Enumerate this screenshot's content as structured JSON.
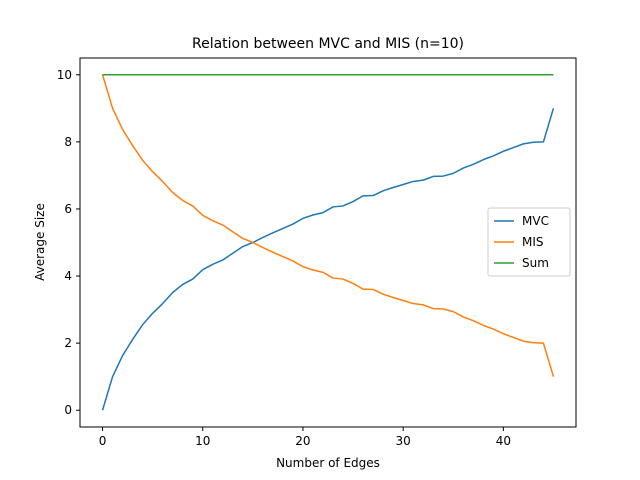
{
  "chart_data": {
    "type": "line",
    "title": "Relation between MVC and MIS (n=10)",
    "xlabel": "Number of Edges",
    "ylabel": "Average Size",
    "xlim": [
      -2.25,
      47.25
    ],
    "ylim": [
      -0.5,
      10.5
    ],
    "xticks": [
      0,
      10,
      20,
      30,
      40
    ],
    "yticks": [
      0,
      2,
      4,
      6,
      8,
      10
    ],
    "grid": false,
    "legend_position": "center-right",
    "x": [
      0,
      1,
      2,
      3,
      4,
      5,
      6,
      7,
      8,
      9,
      10,
      11,
      12,
      13,
      14,
      15,
      16,
      17,
      18,
      19,
      20,
      21,
      22,
      23,
      24,
      25,
      26,
      27,
      28,
      29,
      30,
      31,
      32,
      33,
      34,
      35,
      36,
      37,
      38,
      39,
      40,
      41,
      42,
      43,
      44,
      45
    ],
    "series": [
      {
        "name": "MVC",
        "color": "#1f77b4",
        "values": [
          0,
          1.0,
          1.63,
          2.11,
          2.55,
          2.89,
          3.18,
          3.51,
          3.75,
          3.91,
          4.19,
          4.35,
          4.48,
          4.68,
          4.88,
          5.0,
          5.15,
          5.29,
          5.42,
          5.55,
          5.72,
          5.82,
          5.89,
          6.06,
          6.09,
          6.22,
          6.39,
          6.4,
          6.54,
          6.64,
          6.73,
          6.82,
          6.86,
          6.97,
          6.98,
          7.06,
          7.22,
          7.33,
          7.47,
          7.58,
          7.72,
          7.83,
          7.94,
          7.99,
          8.0,
          9.0
        ]
      },
      {
        "name": "MIS",
        "color": "#ff7f0e",
        "values": [
          10,
          9.0,
          8.37,
          7.89,
          7.45,
          7.11,
          6.82,
          6.49,
          6.25,
          6.09,
          5.81,
          5.65,
          5.52,
          5.32,
          5.12,
          5.0,
          4.85,
          4.71,
          4.58,
          4.45,
          4.28,
          4.18,
          4.11,
          3.94,
          3.91,
          3.78,
          3.61,
          3.6,
          3.46,
          3.36,
          3.27,
          3.18,
          3.14,
          3.03,
          3.02,
          2.94,
          2.78,
          2.67,
          2.53,
          2.42,
          2.28,
          2.17,
          2.06,
          2.01,
          2.0,
          1.0
        ]
      },
      {
        "name": "Sum",
        "color": "#2ca02c",
        "values": [
          10,
          10,
          10,
          10,
          10,
          10,
          10,
          10,
          10,
          10,
          10,
          10,
          10,
          10,
          10,
          10,
          10,
          10,
          10,
          10,
          10,
          10,
          10,
          10,
          10,
          10,
          10,
          10,
          10,
          10,
          10,
          10,
          10,
          10,
          10,
          10,
          10,
          10,
          10,
          10,
          10,
          10,
          10,
          10,
          10,
          10
        ]
      }
    ]
  }
}
